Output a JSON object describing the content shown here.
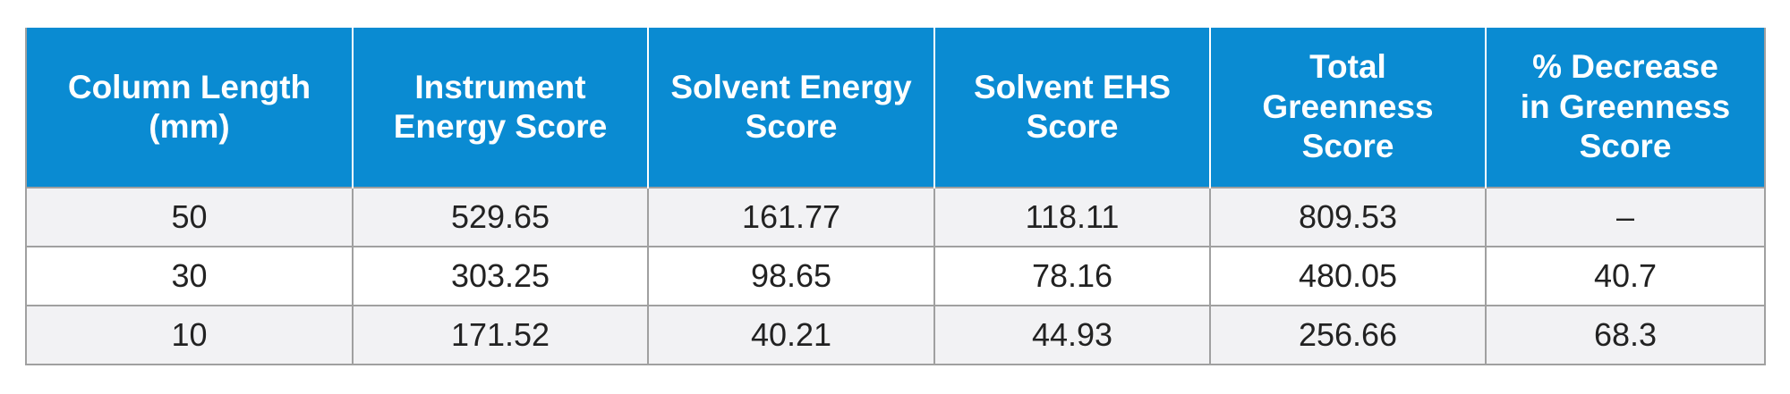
{
  "table": {
    "header": [
      "Column Length (mm)",
      "Instrument Energy Score",
      "Solvent Energy Score",
      "Solvent EHS Score",
      "Total Greenness Score",
      "% Decrease in Greenness Score"
    ],
    "rows": [
      [
        50,
        529.65,
        161.77,
        118.11,
        809.53,
        "–"
      ],
      [
        30,
        303.25,
        98.65,
        78.16,
        480.05,
        40.7
      ],
      [
        10,
        171.52,
        40.21,
        44.93,
        256.66,
        68.3
      ]
    ]
  }
}
